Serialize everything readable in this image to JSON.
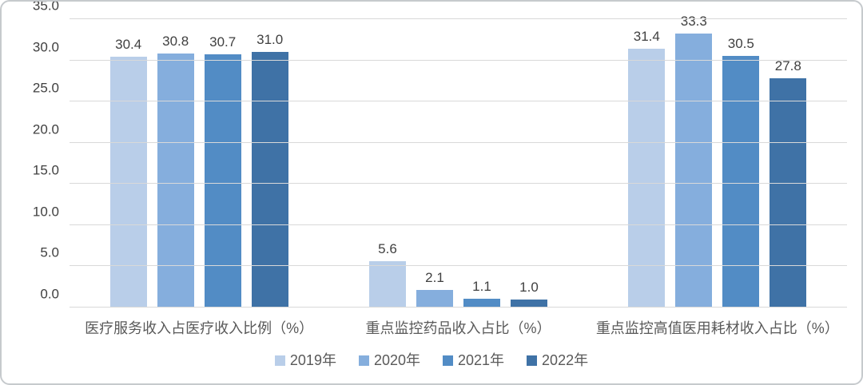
{
  "chart_data": {
    "type": "bar",
    "title": "",
    "categories": [
      "医疗服务收入占医疗收入比例（%）",
      "重点监控药品收入占比（%）",
      "重点监控高值医用耗材收入占比（%）"
    ],
    "series": [
      {
        "name": "2019年",
        "color": "#b9cee9",
        "values": [
          30.4,
          5.6,
          31.4
        ]
      },
      {
        "name": "2020年",
        "color": "#85aedd",
        "values": [
          30.8,
          2.1,
          33.3
        ]
      },
      {
        "name": "2021年",
        "color": "#528cc5",
        "values": [
          30.7,
          1.1,
          30.5
        ]
      },
      {
        "name": "2022年",
        "color": "#3f72a6",
        "values": [
          31.0,
          1.0,
          27.8
        ]
      }
    ],
    "ylim": [
      0,
      35
    ],
    "ytick_step": 5,
    "ytick_labels": [
      "0.0",
      "5.0",
      "10.0",
      "15.0",
      "20.0",
      "25.0",
      "30.0",
      "35.0"
    ],
    "grid": true,
    "legend_position": "bottom",
    "value_labels_shown": true
  },
  "styles": {
    "gridline_color": "#d9d9d9",
    "tick_text_color": "#404040",
    "value_label_color": "#404040",
    "axis_label_color": "#595959",
    "card_border_color": "#c6cacd",
    "background_color": "#ffffff"
  }
}
